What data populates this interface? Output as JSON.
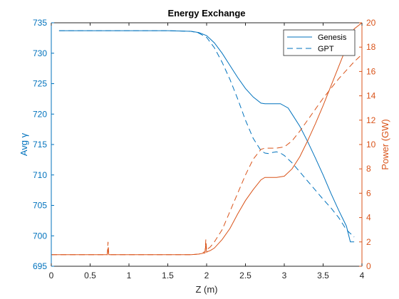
{
  "chart_data": {
    "type": "line",
    "title": "Energy Exchange",
    "xlabel": "Z (m)",
    "ylabel_left": "Avg γ",
    "ylabel_right": "Power (GW)",
    "xlim": [
      0,
      4
    ],
    "ylim_left": [
      695,
      735
    ],
    "ylim_right": [
      0,
      20
    ],
    "x_ticks": [
      "0",
      "0.5",
      "1",
      "1.5",
      "2",
      "2.5",
      "3",
      "3.5",
      "4"
    ],
    "y_left_ticks": [
      "695",
      "700",
      "705",
      "710",
      "715",
      "720",
      "725",
      "730",
      "735"
    ],
    "y_right_ticks": [
      "0",
      "2",
      "4",
      "6",
      "8",
      "10",
      "12",
      "14",
      "16",
      "18",
      "20"
    ],
    "grid": false,
    "legend_position": "top-right",
    "legend": [
      {
        "label": "Genesis",
        "style": "solid"
      },
      {
        "label": "GPT",
        "style": "dashed"
      }
    ],
    "colors": {
      "left_axis": "#0072BD",
      "right_axis": "#D95319"
    },
    "series": [
      {
        "name": "Genesis",
        "axis": "left",
        "style": "solid",
        "color": "#0072BD",
        "x": [
          0.1,
          0.5,
          1.0,
          1.5,
          1.8,
          1.9,
          2.0,
          2.1,
          2.2,
          2.3,
          2.4,
          2.5,
          2.6,
          2.7,
          2.75,
          2.8,
          2.95,
          3.05,
          3.1,
          3.2,
          3.3,
          3.4,
          3.5,
          3.6,
          3.7,
          3.8,
          3.85,
          3.9
        ],
        "y": [
          733.7,
          733.7,
          733.7,
          733.7,
          733.6,
          733.4,
          732.9,
          731.7,
          730.0,
          728.0,
          726.0,
          724.2,
          722.8,
          721.8,
          721.7,
          721.7,
          721.7,
          721.0,
          720.0,
          718.0,
          715.5,
          712.8,
          710.0,
          707.0,
          704.2,
          701.6,
          699.0,
          699.0
        ]
      },
      {
        "name": "GPT",
        "axis": "left",
        "style": "dashed",
        "color": "#0072BD",
        "x": [
          0.1,
          0.5,
          1.0,
          1.5,
          1.8,
          1.9,
          2.0,
          2.1,
          2.2,
          2.3,
          2.4,
          2.5,
          2.6,
          2.7,
          2.75,
          2.8,
          2.85,
          2.9,
          2.95,
          3.0,
          3.1,
          3.2,
          3.3,
          3.4,
          3.5,
          3.6,
          3.7,
          3.8,
          3.9
        ],
        "y": [
          733.7,
          733.7,
          733.7,
          733.7,
          733.6,
          733.3,
          732.6,
          730.9,
          728.5,
          725.7,
          722.5,
          719.0,
          716.0,
          714.0,
          713.6,
          713.5,
          713.7,
          713.8,
          713.6,
          713.2,
          712.0,
          710.5,
          709.0,
          707.5,
          706.0,
          704.6,
          703.0,
          701.0,
          699.8
        ]
      },
      {
        "name": "Genesis",
        "axis": "right",
        "style": "solid",
        "color": "#D95319",
        "x": [
          0.0,
          0.5,
          0.7,
          0.72,
          0.73,
          0.74,
          0.76,
          0.8,
          1.0,
          1.5,
          1.8,
          1.9,
          1.98,
          1.99,
          2.0,
          2.01,
          2.05,
          2.1,
          2.2,
          2.3,
          2.4,
          2.5,
          2.6,
          2.7,
          2.75,
          2.9,
          3.0,
          3.1,
          3.2,
          3.3,
          3.4,
          3.5,
          3.6,
          3.7,
          3.8,
          3.9,
          4.0
        ],
        "y": [
          0.95,
          0.95,
          0.95,
          0.95,
          1.5,
          0.95,
          0.95,
          0.95,
          0.95,
          0.95,
          0.95,
          1.0,
          1.1,
          1.9,
          1.15,
          1.2,
          1.3,
          1.5,
          2.2,
          3.1,
          4.3,
          5.4,
          6.3,
          7.1,
          7.3,
          7.3,
          7.4,
          8.0,
          9.0,
          10.3,
          11.7,
          13.2,
          14.8,
          16.4,
          18.0,
          19.5,
          20.0
        ]
      },
      {
        "name": "GPT",
        "axis": "right",
        "style": "dashed",
        "color": "#D95319",
        "x": [
          0.0,
          0.5,
          0.7,
          0.72,
          0.73,
          0.74,
          0.76,
          0.8,
          1.0,
          1.5,
          1.8,
          1.9,
          1.98,
          1.99,
          2.0,
          2.01,
          2.05,
          2.1,
          2.2,
          2.3,
          2.4,
          2.5,
          2.6,
          2.7,
          2.75,
          2.8,
          2.9,
          3.0,
          3.1,
          3.2,
          3.3,
          3.4,
          3.5,
          3.6,
          3.7,
          3.8,
          3.9,
          4.0
        ],
        "y": [
          0.95,
          0.95,
          0.95,
          0.95,
          2.0,
          0.95,
          0.95,
          0.95,
          0.95,
          0.95,
          0.95,
          1.0,
          1.2,
          2.2,
          1.3,
          1.4,
          1.6,
          2.0,
          3.0,
          4.5,
          6.0,
          7.5,
          8.8,
          9.6,
          9.7,
          9.7,
          9.7,
          9.8,
          10.3,
          11.1,
          12.0,
          12.9,
          13.8,
          14.6,
          15.4,
          16.1,
          16.8,
          17.4
        ]
      }
    ]
  }
}
